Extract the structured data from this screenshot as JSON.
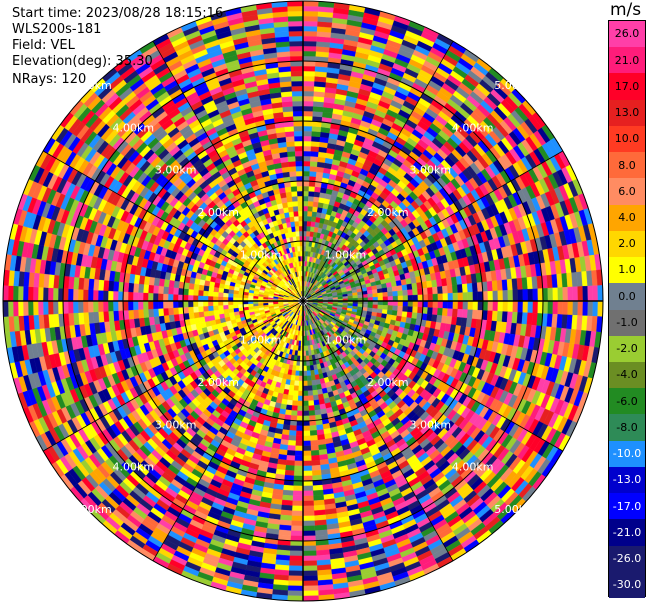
{
  "info": {
    "start_time": "Start time: 2023/08/28 18:15:16",
    "instrument": "WLS200s-181",
    "field": "Field: VEL",
    "elevation": "Elevation(deg): 35.30",
    "nrays": "NRays: 120"
  },
  "colorbar": {
    "unit": "m/s",
    "ticks": [
      "26.0",
      "21.0",
      "17.0",
      "13.0",
      "10.0",
      "8.0",
      "6.0",
      "4.0",
      "2.0",
      "1.0",
      "0.0",
      "-1.0",
      "-2.0",
      "-4.0",
      "-6.0",
      "-8.0",
      "-10.0",
      "-13.0",
      "-17.0",
      "-21.0",
      "-26.0",
      "-30.0"
    ],
    "colors": [
      "#ff3fa8",
      "#ff1c7a",
      "#ff0028",
      "#e62020",
      "#ff3b22",
      "#ff6a3a",
      "#ff8c62",
      "#ffa500",
      "#ffd700",
      "#ffff00",
      "#708090",
      "#707070",
      "#9acd32",
      "#6b8e23",
      "#228b22",
      "#2e8b57",
      "#1e90ff",
      "#0000cd",
      "#0000ff",
      "#00008b",
      "#1a1a6e",
      "#1a1a6e"
    ]
  },
  "range_rings": {
    "labels": [
      "1.00km",
      "2.00km",
      "3.00km",
      "4.00km",
      "5.00km"
    ]
  }
}
